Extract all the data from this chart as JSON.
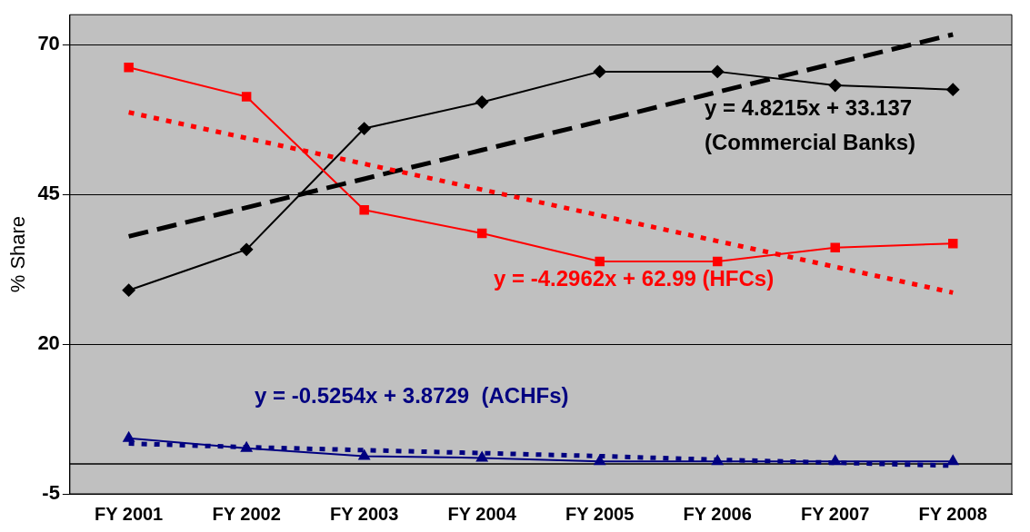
{
  "chart_data": {
    "type": "line",
    "ylabel": "% Share",
    "categories": [
      "FY 2001",
      "FY 2002",
      "FY 2003",
      "FY 2004",
      "FY 2005",
      "FY 2006",
      "FY 2007",
      "FY 2008"
    ],
    "series": [
      {
        "color": "#000000",
        "marker": "diamond",
        "line_style": "solid",
        "values": [
          29.0,
          35.8,
          56.0,
          60.4,
          65.5,
          65.5,
          63.2,
          62.5
        ]
      },
      {
        "color": "#ff0000",
        "marker": "square",
        "line_style": "solid",
        "values": [
          66.2,
          61.3,
          42.4,
          38.5,
          33.8,
          33.8,
          36.1,
          36.8
        ]
      },
      {
        "color": "#000080",
        "marker": "triangle",
        "line_style": "solid",
        "values": [
          4.3,
          2.6,
          1.3,
          1.0,
          0.4,
          0.4,
          0.4,
          0.4
        ]
      },
      {
        "color": "#000000",
        "marker": "none",
        "line_style": "dashed",
        "values": [
          38.0,
          42.8,
          47.6,
          52.4,
          57.2,
          62.1,
          66.9,
          71.7
        ]
      },
      {
        "color": "#ff0000",
        "marker": "none",
        "line_style": "dotted",
        "values": [
          58.7,
          54.4,
          50.1,
          45.8,
          41.5,
          37.2,
          32.9,
          28.6
        ]
      },
      {
        "color": "#000080",
        "marker": "none",
        "line_style": "dotted",
        "values": [
          3.4,
          2.8,
          2.3,
          1.8,
          1.3,
          0.7,
          0.2,
          -0.3
        ]
      }
    ],
    "ylim": [
      -5,
      75
    ],
    "yticks": [
      -5,
      20,
      45,
      70
    ],
    "grid": "y",
    "legend": false,
    "ref_lines": [
      {
        "axis": "y",
        "value": 0,
        "color": "#000000"
      }
    ],
    "annotations": [
      "y = 4.8215x + 33.137\n(Commercial Banks)",
      "y = -4.2962x + 62.99 (HFCs)",
      "y = -0.5254x + 3.8729  (ACHFs)"
    ]
  }
}
